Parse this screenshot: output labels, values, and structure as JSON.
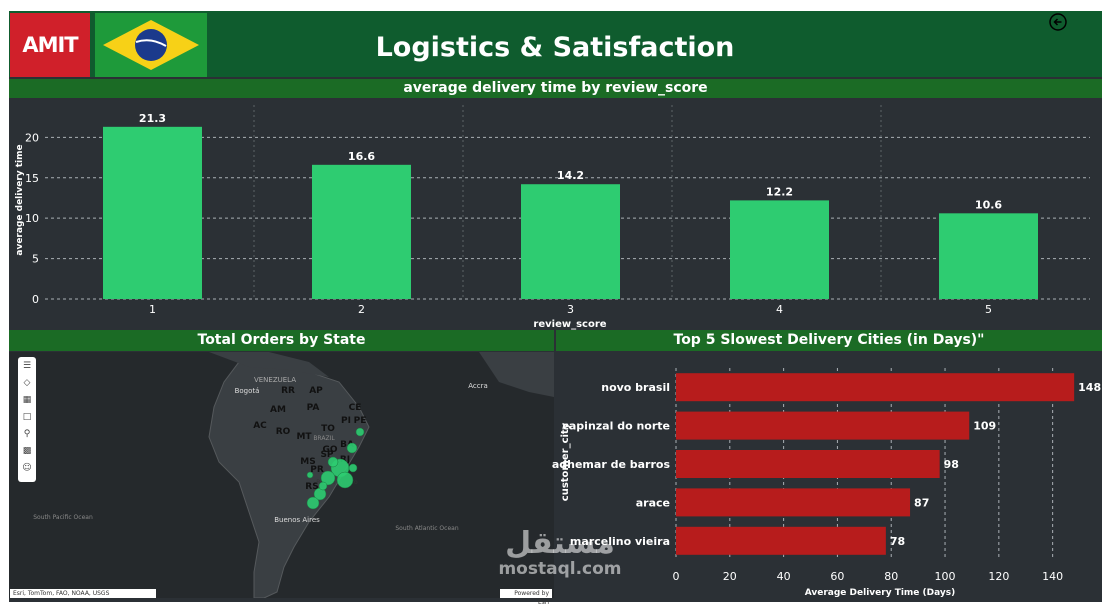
{
  "header": {
    "title": "Logistics & Satisfaction",
    "logo_text": "AMIT",
    "back_icon": "back-arrow-circle-icon"
  },
  "top_chart_title": "average delivery time by review_score",
  "map_title": "Total Orders by State",
  "city_chart_title": "Top 5 Slowest Delivery Cities (in Days)\"",
  "map": {
    "state_labels": [
      "RR",
      "AP",
      "AM",
      "PA",
      "CE",
      "AC",
      "RO",
      "TO",
      "PI",
      "PE",
      "MT",
      "BA",
      "GO",
      "MS",
      "SP",
      "PR",
      "RS",
      "RJ"
    ],
    "place_labels": [
      "VENEZUELA",
      "Bogotá",
      "Accra",
      "Buenos Aires",
      "South Pacific Ocean",
      "South Atlantic Ocean",
      "Rio de Janeiro",
      "BRAZIL"
    ],
    "attribution_left": "Esri, TomTom, FAO, NOAA, USGS",
    "attribution_right": "Powered by Esri",
    "toolbar_icons": [
      "menu-icon",
      "layers-icon",
      "grid-icon",
      "select-icon",
      "search-icon",
      "chart-icon",
      "person-icon"
    ]
  },
  "watermark": {
    "arabic": "مستقل",
    "latin": "mostaql.com"
  },
  "colors": {
    "bar_green": "#2ecc71",
    "bar_red": "#b71c1c",
    "header_green": "#0f5c2e",
    "panel_bg": "#2b3035"
  },
  "chart_data": [
    {
      "type": "bar",
      "title": "average delivery time by review_score",
      "categories": [
        "1",
        "2",
        "3",
        "4",
        "5"
      ],
      "values": [
        21.3,
        16.6,
        14.2,
        12.2,
        10.6
      ],
      "data_labels": [
        "21.3",
        "16.6",
        "14.2",
        "12.2",
        "10.6"
      ],
      "xlabel": "review_score",
      "ylabel": "average delivery time",
      "yticks": [
        "0",
        "5",
        "10",
        "15",
        "20"
      ],
      "ylim": [
        0,
        24
      ],
      "grid": true
    },
    {
      "type": "bar",
      "orientation": "horizontal",
      "title": "Top 5 Slowest Delivery Cities (in Days)\"",
      "categories": [
        "novo brasil",
        "capinzal do norte",
        "adhemar de barros",
        "arace",
        "marcelino vieira"
      ],
      "values": [
        148,
        109,
        98,
        87,
        78
      ],
      "data_labels": [
        "148",
        "109",
        "98",
        "87",
        "78"
      ],
      "xlabel": "Average Delivery Time (Days)",
      "ylabel": "customer_city",
      "xticks": [
        "0",
        "20",
        "40",
        "60",
        "80",
        "100",
        "120",
        "140"
      ],
      "xlim": [
        0,
        155
      ],
      "grid": true
    }
  ]
}
